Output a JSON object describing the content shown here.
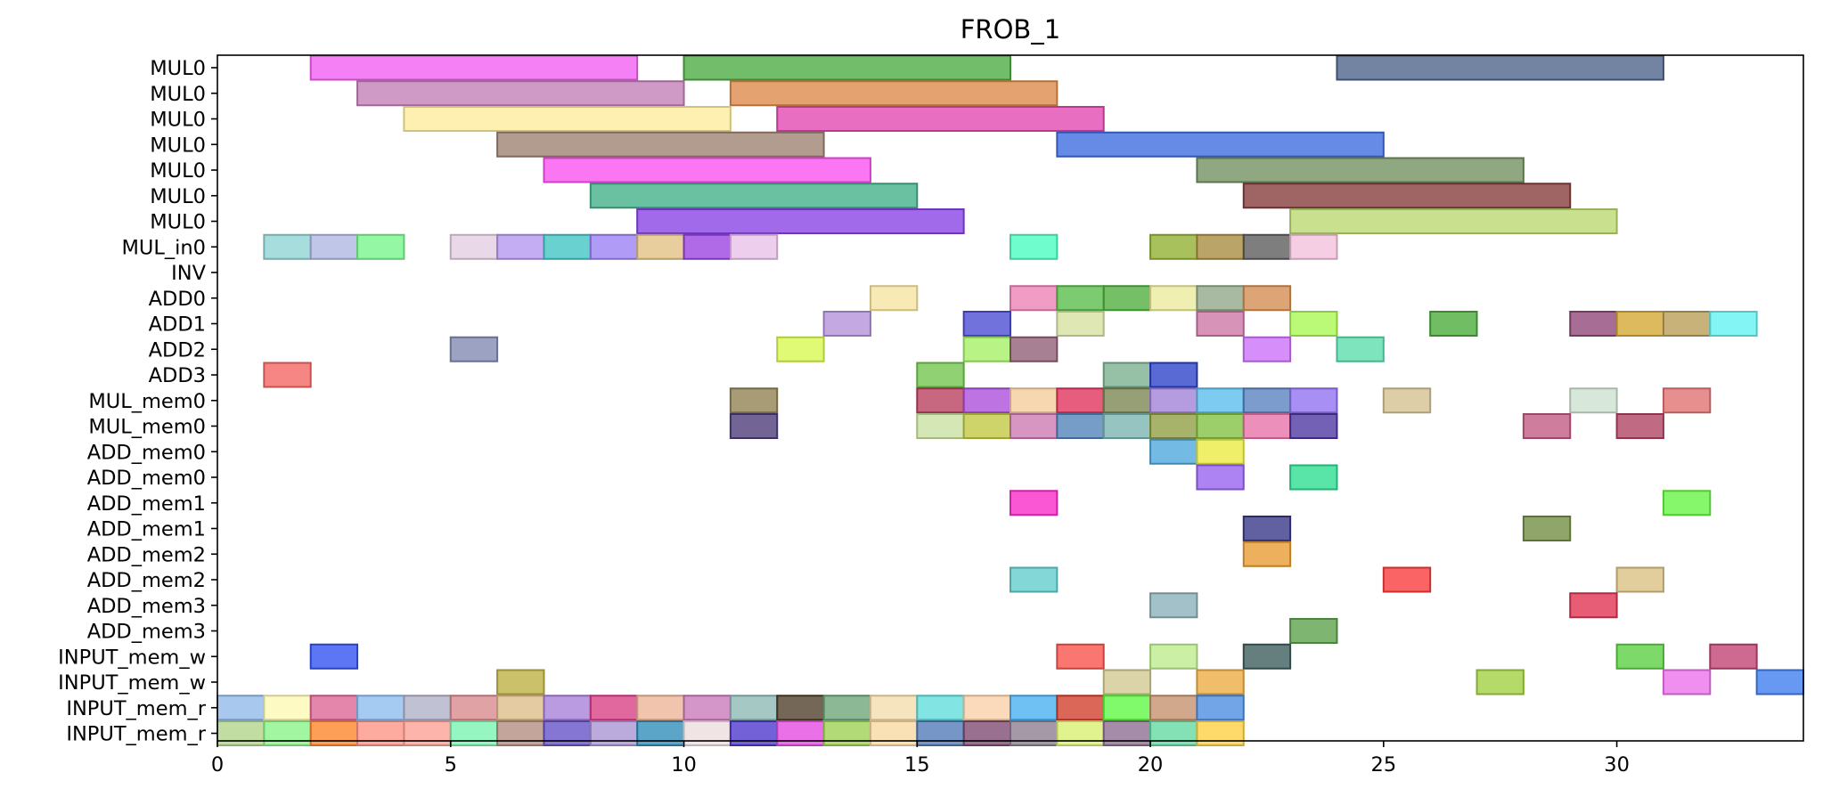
{
  "chart_data": {
    "type": "gantt",
    "title": "FROB_1",
    "xlabel": "",
    "ylabel": "",
    "xlim": [
      0,
      34
    ],
    "x_ticks": [
      0,
      5,
      10,
      15,
      20,
      25,
      30
    ],
    "x_tick_labels": [
      "0",
      "5",
      "10",
      "15",
      "20",
      "25",
      "30"
    ],
    "grid": false,
    "legend": "none",
    "rows": [
      {
        "label": "MUL0",
        "bars": [
          {
            "start": 2,
            "end": 9,
            "color": "#f25cf2"
          },
          {
            "start": 10,
            "end": 17,
            "color": "#4aaa40"
          },
          {
            "start": 24,
            "end": 31,
            "color": "#4c6188"
          }
        ]
      },
      {
        "label": "MUL0",
        "bars": [
          {
            "start": 3,
            "end": 10,
            "color": "#c27fb6"
          },
          {
            "start": 11,
            "end": 18,
            "color": "#dd8848"
          }
        ]
      },
      {
        "label": "MUL0",
        "bars": [
          {
            "start": 4,
            "end": 11,
            "color": "#fcec9a"
          },
          {
            "start": 12,
            "end": 19,
            "color": "#e045b0"
          }
        ]
      },
      {
        "label": "MUL0",
        "bars": [
          {
            "start": 6,
            "end": 13,
            "color": "#9c8070"
          },
          {
            "start": 18,
            "end": 25,
            "color": "#3b6ae0"
          }
        ]
      },
      {
        "label": "MUL0",
        "bars": [
          {
            "start": 7,
            "end": 14,
            "color": "#fa4ff0"
          },
          {
            "start": 21,
            "end": 28,
            "color": "#708f5e"
          }
        ]
      },
      {
        "label": "MUL0",
        "bars": [
          {
            "start": 8,
            "end": 15,
            "color": "#3fb088"
          },
          {
            "start": 22,
            "end": 29,
            "color": "#843a3a"
          }
        ]
      },
      {
        "label": "MUL0",
        "bars": [
          {
            "start": 9,
            "end": 16,
            "color": "#8540e6"
          },
          {
            "start": 23,
            "end": 30,
            "color": "#bad870"
          }
        ]
      },
      {
        "label": "MUL_in0",
        "bars": [
          {
            "start": 1,
            "end": 2,
            "color": "#8ed3d2"
          },
          {
            "start": 2,
            "end": 3,
            "color": "#aeb6e0"
          },
          {
            "start": 3,
            "end": 4,
            "color": "#76f58a"
          },
          {
            "start": 5,
            "end": 6,
            "color": "#e3cde0"
          },
          {
            "start": 6,
            "end": 7,
            "color": "#b496f0"
          },
          {
            "start": 7,
            "end": 8,
            "color": "#40c4c4"
          },
          {
            "start": 8,
            "end": 9,
            "color": "#9a80f4"
          },
          {
            "start": 9,
            "end": 10,
            "color": "#e0c080"
          },
          {
            "start": 10,
            "end": 11,
            "color": "#9a40e0"
          },
          {
            "start": 11,
            "end": 12,
            "color": "#e8c0e8"
          },
          {
            "start": 17,
            "end": 18,
            "color": "#48fcc0"
          },
          {
            "start": 20,
            "end": 21,
            "color": "#90b030"
          },
          {
            "start": 21,
            "end": 22,
            "color": "#a88a3c"
          },
          {
            "start": 22,
            "end": 23,
            "color": "#5a5a5a"
          },
          {
            "start": 23,
            "end": 24,
            "color": "#f4c0dc"
          }
        ]
      },
      {
        "label": "INV",
        "bars": []
      },
      {
        "label": "ADD0",
        "bars": [
          {
            "start": 14,
            "end": 15,
            "color": "#f6e4a0"
          },
          {
            "start": 17,
            "end": 18,
            "color": "#ec80b4"
          },
          {
            "start": 18,
            "end": 19,
            "color": "#58bc48"
          },
          {
            "start": 19,
            "end": 20,
            "color": "#4eae3c"
          },
          {
            "start": 20,
            "end": 21,
            "color": "#ecea9c"
          },
          {
            "start": 21,
            "end": 22,
            "color": "#90a888"
          },
          {
            "start": 22,
            "end": 23,
            "color": "#d48c50"
          }
        ]
      },
      {
        "label": "ADD1",
        "bars": [
          {
            "start": 13,
            "end": 14,
            "color": "#b290da"
          },
          {
            "start": 16,
            "end": 17,
            "color": "#4a4ad4"
          },
          {
            "start": 18,
            "end": 19,
            "color": "#d6e0a0"
          },
          {
            "start": 21,
            "end": 22,
            "color": "#cc74a4"
          },
          {
            "start": 23,
            "end": 24,
            "color": "#a8f850"
          },
          {
            "start": 26,
            "end": 27,
            "color": "#48aa38"
          },
          {
            "start": 29,
            "end": 30,
            "color": "#8e4476"
          },
          {
            "start": 30,
            "end": 31,
            "color": "#d4a630"
          },
          {
            "start": 31,
            "end": 32,
            "color": "#b89c54"
          },
          {
            "start": 32,
            "end": 33,
            "color": "#62f2f2"
          }
        ]
      },
      {
        "label": "ADD2",
        "bars": [
          {
            "start": 5,
            "end": 6,
            "color": "#8088b0"
          },
          {
            "start": 12,
            "end": 13,
            "color": "#d8f84e"
          },
          {
            "start": 16,
            "end": 17,
            "color": "#a4f064"
          },
          {
            "start": 17,
            "end": 18,
            "color": "#8e5c74"
          },
          {
            "start": 22,
            "end": 23,
            "color": "#ca70f8"
          },
          {
            "start": 24,
            "end": 25,
            "color": "#58dcac"
          }
        ]
      },
      {
        "label": "ADD3",
        "bars": [
          {
            "start": 1,
            "end": 2,
            "color": "#f26460"
          },
          {
            "start": 15,
            "end": 16,
            "color": "#70c44c"
          },
          {
            "start": 19,
            "end": 20,
            "color": "#7ab08e"
          },
          {
            "start": 20,
            "end": 21,
            "color": "#2a40c8"
          }
        ]
      },
      {
        "label": "MUL_mem0",
        "bars": [
          {
            "start": 11,
            "end": 12,
            "color": "#8e8050"
          },
          {
            "start": 15,
            "end": 16,
            "color": "#b83c5c"
          },
          {
            "start": 16,
            "end": 17,
            "color": "#aa4cd8"
          },
          {
            "start": 17,
            "end": 18,
            "color": "#f4cc98"
          },
          {
            "start": 18,
            "end": 19,
            "color": "#e03058"
          },
          {
            "start": 19,
            "end": 20,
            "color": "#788450"
          },
          {
            "start": 20,
            "end": 21,
            "color": "#a080d8"
          },
          {
            "start": 21,
            "end": 22,
            "color": "#58bcec"
          },
          {
            "start": 22,
            "end": 23,
            "color": "#5880c0"
          },
          {
            "start": 23,
            "end": 24,
            "color": "#9070f0"
          },
          {
            "start": 25,
            "end": 26,
            "color": "#d4c090"
          },
          {
            "start": 29,
            "end": 30,
            "color": "#cce0d0"
          },
          {
            "start": 31,
            "end": 32,
            "color": "#e07070"
          }
        ]
      },
      {
        "label": "MUL_mem0",
        "bars": [
          {
            "start": 11,
            "end": 12,
            "color": "#4a3a78"
          },
          {
            "start": 15,
            "end": 16,
            "color": "#c8e0a0"
          },
          {
            "start": 16,
            "end": 17,
            "color": "#c0c840"
          },
          {
            "start": 17,
            "end": 18,
            "color": "#ca78b0"
          },
          {
            "start": 18,
            "end": 19,
            "color": "#5080b8"
          },
          {
            "start": 19,
            "end": 20,
            "color": "#78b4b0"
          },
          {
            "start": 20,
            "end": 21,
            "color": "#8e9c40"
          },
          {
            "start": 21,
            "end": 22,
            "color": "#80c040"
          },
          {
            "start": 22,
            "end": 23,
            "color": "#e870a8"
          },
          {
            "start": 23,
            "end": 24,
            "color": "#4a34a0"
          },
          {
            "start": 28,
            "end": 29,
            "color": "#c05880"
          },
          {
            "start": 30,
            "end": 31,
            "color": "#b04060"
          }
        ]
      },
      {
        "label": "ADD_mem0",
        "bars": [
          {
            "start": 20,
            "end": 21,
            "color": "#4ca6dc"
          },
          {
            "start": 21,
            "end": 22,
            "color": "#ecea40"
          }
        ]
      },
      {
        "label": "ADD_mem0",
        "bars": [
          {
            "start": 21,
            "end": 22,
            "color": "#9660f0"
          },
          {
            "start": 23,
            "end": 24,
            "color": "#2adc90"
          }
        ]
      },
      {
        "label": "ADD_mem1",
        "bars": [
          {
            "start": 17,
            "end": 18,
            "color": "#f828c8"
          },
          {
            "start": 31,
            "end": 32,
            "color": "#64f440"
          }
        ]
      },
      {
        "label": "ADD_mem1",
        "bars": [
          {
            "start": 22,
            "end": 23,
            "color": "#343486"
          },
          {
            "start": 28,
            "end": 29,
            "color": "#708c40"
          }
        ]
      },
      {
        "label": "ADD_mem2",
        "bars": [
          {
            "start": 22,
            "end": 23,
            "color": "#e89a30"
          }
        ]
      },
      {
        "label": "ADD_mem2",
        "bars": [
          {
            "start": 17,
            "end": 18,
            "color": "#60cccc"
          },
          {
            "start": 25,
            "end": 26,
            "color": "#f83838"
          },
          {
            "start": 30,
            "end": 31,
            "color": "#d8c080"
          }
        ]
      },
      {
        "label": "ADD_mem3",
        "bars": [
          {
            "start": 20,
            "end": 21,
            "color": "#88b0b8"
          },
          {
            "start": 29,
            "end": 30,
            "color": "#e03050"
          }
        ]
      },
      {
        "label": "ADD_mem3",
        "bars": [
          {
            "start": 23,
            "end": 24,
            "color": "#5aa048"
          }
        ]
      },
      {
        "label": "INPUT_mem_w",
        "bars": [
          {
            "start": 2,
            "end": 3,
            "color": "#3050f0"
          },
          {
            "start": 18,
            "end": 19,
            "color": "#f85048"
          },
          {
            "start": 20,
            "end": 21,
            "color": "#bcec8c"
          },
          {
            "start": 22,
            "end": 23,
            "color": "#3a5a5a"
          },
          {
            "start": 30,
            "end": 31,
            "color": "#58d040"
          },
          {
            "start": 32,
            "end": 33,
            "color": "#c04070"
          }
        ]
      },
      {
        "label": "INPUT_mem_w",
        "bars": [
          {
            "start": 6,
            "end": 7,
            "color": "#bcb040"
          },
          {
            "start": 19,
            "end": 20,
            "color": "#d0c890"
          },
          {
            "start": 21,
            "end": 22,
            "color": "#ecaa40"
          },
          {
            "start": 27,
            "end": 28,
            "color": "#a0d040"
          },
          {
            "start": 31,
            "end": 32,
            "color": "#ec70ec"
          },
          {
            "start": 33,
            "end": 34,
            "color": "#3c7cf0"
          }
        ]
      },
      {
        "label": "INPUT_mem_r",
        "bars": [
          {
            "start": 0,
            "end": 1,
            "color": "#90b8e8"
          },
          {
            "start": 1,
            "end": 2,
            "color": "#fcf8b4"
          },
          {
            "start": 2,
            "end": 3,
            "color": "#dc6494"
          },
          {
            "start": 3,
            "end": 4,
            "color": "#8cbcf0"
          },
          {
            "start": 4,
            "end": 5,
            "color": "#b0b0c8"
          },
          {
            "start": 5,
            "end": 6,
            "color": "#d8888c"
          },
          {
            "start": 6,
            "end": 7,
            "color": "#dcbc88"
          },
          {
            "start": 7,
            "end": 8,
            "color": "#a67ed8"
          },
          {
            "start": 8,
            "end": 9,
            "color": "#d83c84"
          },
          {
            "start": 9,
            "end": 10,
            "color": "#ecb496"
          },
          {
            "start": 10,
            "end": 11,
            "color": "#c878b8"
          },
          {
            "start": 11,
            "end": 12,
            "color": "#8cb8b4"
          },
          {
            "start": 12,
            "end": 13,
            "color": "#4e3c28"
          },
          {
            "start": 13,
            "end": 14,
            "color": "#6ca478"
          },
          {
            "start": 14,
            "end": 15,
            "color": "#f4dcac"
          },
          {
            "start": 15,
            "end": 16,
            "color": "#60dcdc"
          },
          {
            "start": 16,
            "end": 17,
            "color": "#f8d0a8"
          },
          {
            "start": 17,
            "end": 18,
            "color": "#48b0f0"
          },
          {
            "start": 18,
            "end": 19,
            "color": "#d03c28"
          },
          {
            "start": 19,
            "end": 20,
            "color": "#5cf840"
          },
          {
            "start": 20,
            "end": 21,
            "color": "#c4906c"
          },
          {
            "start": 21,
            "end": 22,
            "color": "#4a8ce0"
          }
        ]
      },
      {
        "label": "INPUT_mem_r",
        "bars": [
          {
            "start": 0,
            "end": 1,
            "color": "#b0d488"
          },
          {
            "start": 1,
            "end": 2,
            "color": "#88f488"
          },
          {
            "start": 2,
            "end": 3,
            "color": "#fc8428"
          },
          {
            "start": 3,
            "end": 4,
            "color": "#fc9484"
          },
          {
            "start": 4,
            "end": 5,
            "color": "#fca094"
          },
          {
            "start": 5,
            "end": 6,
            "color": "#78f4b0"
          },
          {
            "start": 6,
            "end": 7,
            "color": "#b48c80"
          },
          {
            "start": 7,
            "end": 8,
            "color": "#6450c8"
          },
          {
            "start": 8,
            "end": 9,
            "color": "#a894d4"
          },
          {
            "start": 9,
            "end": 10,
            "color": "#2c8cb8"
          },
          {
            "start": 10,
            "end": 11,
            "color": "#ecdcdc"
          },
          {
            "start": 11,
            "end": 12,
            "color": "#4c34cc"
          },
          {
            "start": 12,
            "end": 13,
            "color": "#e448e0"
          },
          {
            "start": 13,
            "end": 14,
            "color": "#9cd050"
          },
          {
            "start": 14,
            "end": 15,
            "color": "#f8d8a0"
          },
          {
            "start": 15,
            "end": 16,
            "color": "#5078b8"
          },
          {
            "start": 16,
            "end": 17,
            "color": "#7c4870"
          },
          {
            "start": 17,
            "end": 18,
            "color": "#8c7c90"
          },
          {
            "start": 18,
            "end": 19,
            "color": "#d8f070"
          },
          {
            "start": 19,
            "end": 20,
            "color": "#8c6c90"
          },
          {
            "start": 20,
            "end": 21,
            "color": "#60d8a0"
          },
          {
            "start": 21,
            "end": 22,
            "color": "#fcd040"
          }
        ]
      }
    ]
  }
}
